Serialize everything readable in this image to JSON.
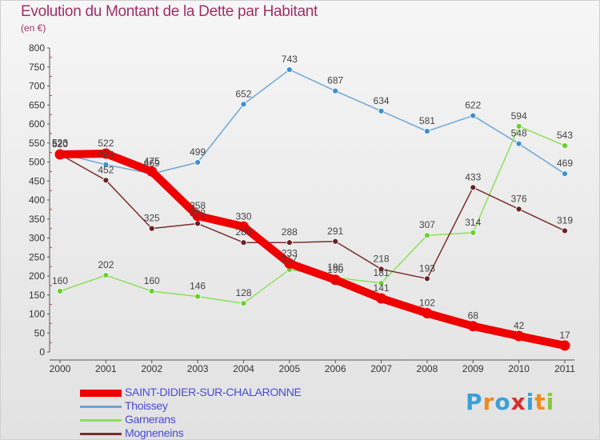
{
  "title": "Evolution du Montant de la Dette par Habitant",
  "subtitle": "(en €)",
  "logo": {
    "text": "Proxiti",
    "letter_colors": [
      "#3aa0d8",
      "#f08a1c",
      "#3aa0d8",
      "#d8302a",
      "#3aa0d8",
      "#f08a1c",
      "#8cc63f"
    ]
  },
  "chart_data": {
    "type": "line",
    "title": "Evolution du Montant de la Dette par Habitant",
    "ylabel": "(en €)",
    "xlabel": "",
    "x": [
      "2000",
      "2001",
      "2002",
      "2003",
      "2004",
      "2005",
      "2006",
      "2007",
      "2008",
      "2009",
      "2010",
      "2011"
    ],
    "ylim": [
      0,
      800
    ],
    "yticks": [
      0,
      50,
      100,
      150,
      200,
      250,
      300,
      350,
      400,
      450,
      500,
      550,
      600,
      650,
      700,
      750,
      800
    ],
    "grid": false,
    "legend": "bottom-left",
    "series": [
      {
        "name": "SAINT-DIDIER-SUR-CHALARONNE",
        "color": "#ee0000",
        "values": [
          520,
          522,
          475,
          358,
          330,
          233,
          190,
          141,
          102,
          68,
          42,
          17
        ]
      },
      {
        "name": "Thoissey",
        "color": "#6fa6d6",
        "values": [
          523,
          493,
          469,
          499,
          652,
          743,
          687,
          634,
          581,
          622,
          548,
          469
        ]
      },
      {
        "name": "Garnerans",
        "color": "#8ee05a",
        "values": [
          160,
          202,
          160,
          146,
          128,
          217,
          196,
          181,
          307,
          314,
          594,
          543
        ]
      },
      {
        "name": "Mogneneins",
        "color": "#7a2e2e",
        "values": [
          520,
          452,
          325,
          338,
          288,
          288,
          291,
          218,
          193,
          433,
          376,
          319
        ]
      }
    ],
    "marker_colors": {
      "SAINT-DIDIER-SUR-CHALARONNE": "#ee0000",
      "Thoissey": "#3d8fd0",
      "Garnerans": "#6ccf2c",
      "Mogneneins": "#6b2020"
    }
  }
}
